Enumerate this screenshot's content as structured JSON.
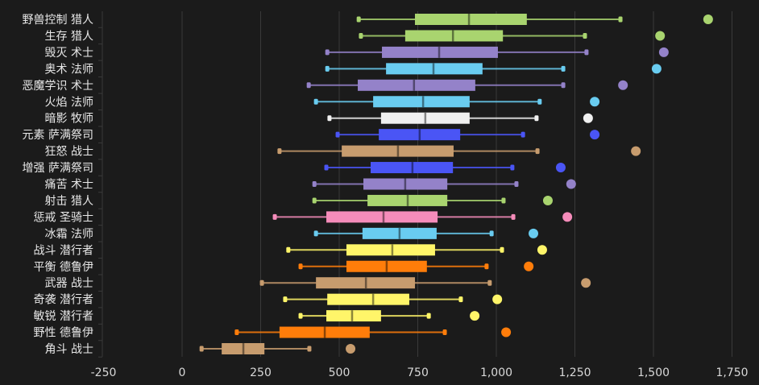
{
  "chart_data": {
    "type": "boxplot",
    "orientation": "horizontal",
    "title": "",
    "xlabel": "",
    "ylabel": "",
    "xlim": [
      -250,
      1800
    ],
    "x_ticks": [
      -250,
      0,
      250,
      500,
      750,
      1000,
      1250,
      1500,
      1750
    ],
    "x_tick_labels": [
      "-250",
      "0",
      "250",
      "500",
      "750",
      "1,000",
      "1,250",
      "1,500",
      "1,750"
    ],
    "grid": true,
    "legend": "none",
    "series": [
      {
        "name": "野兽控制 猎人",
        "color": "#a9d46f",
        "min": 562,
        "q1": 741,
        "median": 913,
        "q3": 1097,
        "max": 1395,
        "outliers": [
          1674
        ]
      },
      {
        "name": "生存 猎人",
        "color": "#a9d46f",
        "min": 569,
        "q1": 710,
        "median": 862,
        "q3": 1021,
        "max": 1282,
        "outliers": [
          1521
        ]
      },
      {
        "name": "毁灭 术士",
        "color": "#9482c9",
        "min": 462,
        "q1": 636,
        "median": 818,
        "q3": 1005,
        "max": 1287,
        "outliers": [
          1533
        ]
      },
      {
        "name": "奥术 法师",
        "color": "#69ccf0",
        "min": 462,
        "q1": 649,
        "median": 800,
        "q3": 956,
        "max": 1213,
        "outliers": [
          1510
        ]
      },
      {
        "name": "恶魔学识 术士",
        "color": "#9482c9",
        "min": 403,
        "q1": 559,
        "median": 738,
        "q3": 933,
        "max": 1213,
        "outliers": [
          1403
        ]
      },
      {
        "name": "火焰 法师",
        "color": "#69ccf0",
        "min": 426,
        "q1": 608,
        "median": 767,
        "q3": 915,
        "max": 1138,
        "outliers": [
          1313
        ]
      },
      {
        "name": "暗影 牧师",
        "color": "#f0f0f0",
        "min": 469,
        "q1": 633,
        "median": 774,
        "q3": 915,
        "max": 1128,
        "outliers": [
          1292
        ]
      },
      {
        "name": "元素 萨满祭司",
        "color": "#4a55f5",
        "min": 495,
        "q1": 626,
        "median": 756,
        "q3": 885,
        "max": 1085,
        "outliers": [
          1313
        ]
      },
      {
        "name": "狂怒 战士",
        "color": "#c79c6e",
        "min": 310,
        "q1": 508,
        "median": 687,
        "q3": 864,
        "max": 1131,
        "outliers": [
          1444
        ]
      },
      {
        "name": "增强 萨满祭司",
        "color": "#4a55f5",
        "min": 459,
        "q1": 600,
        "median": 733,
        "q3": 862,
        "max": 1051,
        "outliers": [
          1205
        ]
      },
      {
        "name": "痛苦 术士",
        "color": "#9482c9",
        "min": 421,
        "q1": 577,
        "median": 710,
        "q3": 844,
        "max": 1064,
        "outliers": [
          1238
        ]
      },
      {
        "name": "射击 猎人",
        "color": "#a9d46f",
        "min": 421,
        "q1": 590,
        "median": 718,
        "q3": 844,
        "max": 1023,
        "outliers": [
          1164
        ]
      },
      {
        "name": "惩戒 圣骑士",
        "color": "#f58cba",
        "min": 295,
        "q1": 459,
        "median": 641,
        "q3": 813,
        "max": 1054,
        "outliers": [
          1226
        ]
      },
      {
        "name": "冰霜 法师",
        "color": "#69ccf0",
        "min": 426,
        "q1": 574,
        "median": 692,
        "q3": 810,
        "max": 985,
        "outliers": [
          1118
        ]
      },
      {
        "name": "战斗 潜行者",
        "color": "#fff569",
        "min": 338,
        "q1": 523,
        "median": 669,
        "q3": 805,
        "max": 1018,
        "outliers": [
          1146
        ]
      },
      {
        "name": "平衡 德鲁伊",
        "color": "#ff7d0a",
        "min": 377,
        "q1": 523,
        "median": 651,
        "q3": 779,
        "max": 969,
        "outliers": [
          1103
        ]
      },
      {
        "name": "武器 战士",
        "color": "#c79c6e",
        "min": 254,
        "q1": 426,
        "median": 585,
        "q3": 741,
        "max": 979,
        "outliers": [
          1285
        ]
      },
      {
        "name": "奇袭 潜行者",
        "color": "#fff569",
        "min": 328,
        "q1": 462,
        "median": 608,
        "q3": 723,
        "max": 887,
        "outliers": [
          1003
        ]
      },
      {
        "name": "敏锐 潜行者",
        "color": "#fff569",
        "min": 377,
        "q1": 459,
        "median": 541,
        "q3": 633,
        "max": 785,
        "outliers": [
          931
        ]
      },
      {
        "name": "野性 德鲁伊",
        "color": "#ff7d0a",
        "min": 174,
        "q1": 310,
        "median": 454,
        "q3": 597,
        "max": 836,
        "outliers": [
          1031
        ]
      },
      {
        "name": "角斗 战士",
        "color": "#c79c6e",
        "min": 62,
        "q1": 126,
        "median": 195,
        "q3": 262,
        "max": 405,
        "outliers": [
          536
        ]
      }
    ]
  }
}
